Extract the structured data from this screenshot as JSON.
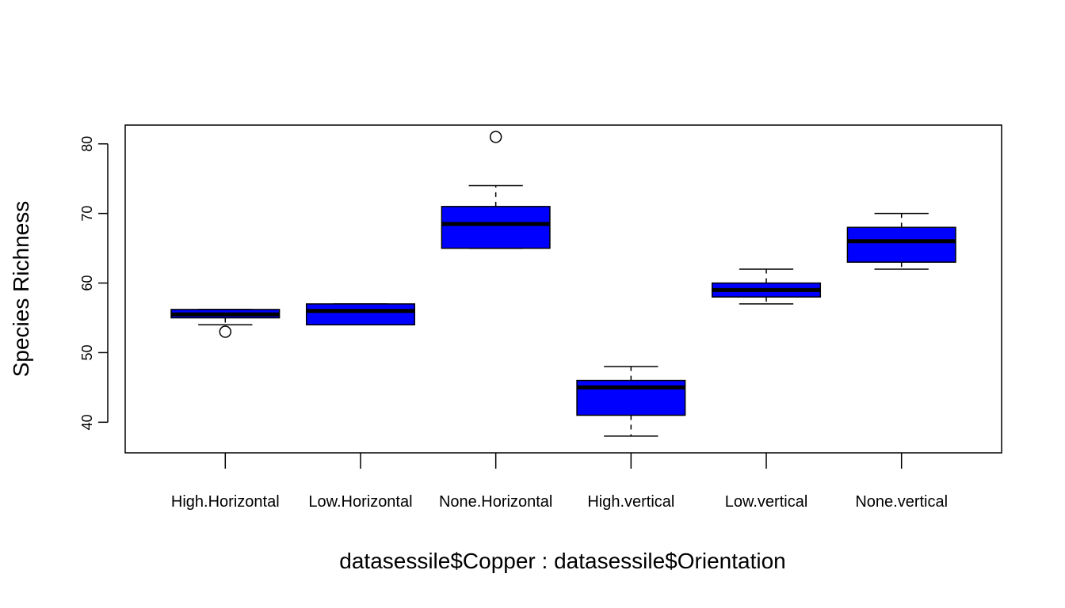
{
  "chart_data": {
    "type": "boxplot",
    "title": "",
    "xlabel": "datasessile$Copper : datasessile$Orientation",
    "ylabel": "Species Richness",
    "ylim": [
      35.6,
      82.7
    ],
    "yticks": [
      40,
      50,
      60,
      70,
      80
    ],
    "grid": false,
    "box_color": "#0000ff",
    "categories": [
      "High.Horizontal",
      "Low.Horizontal",
      "None.Horizontal",
      "High.vertical",
      "Low.vertical",
      "None.vertical"
    ],
    "boxes": [
      {
        "whisker_low": 54,
        "q1": 55,
        "median": 55.5,
        "q3": 56.2,
        "whisker_high": 56.2,
        "outliers": [
          53
        ]
      },
      {
        "whisker_low": 54,
        "q1": 54,
        "median": 56,
        "q3": 57,
        "whisker_high": 57,
        "outliers": []
      },
      {
        "whisker_low": 65,
        "q1": 65,
        "median": 68.5,
        "q3": 71,
        "whisker_high": 74,
        "outliers": [
          81
        ]
      },
      {
        "whisker_low": 38,
        "q1": 41,
        "median": 45,
        "q3": 46,
        "whisker_high": 48,
        "outliers": []
      },
      {
        "whisker_low": 57,
        "q1": 58,
        "median": 59,
        "q3": 60,
        "whisker_high": 62,
        "outliers": []
      },
      {
        "whisker_low": 62,
        "q1": 63,
        "median": 66,
        "q3": 68,
        "whisker_high": 70,
        "outliers": []
      }
    ]
  }
}
